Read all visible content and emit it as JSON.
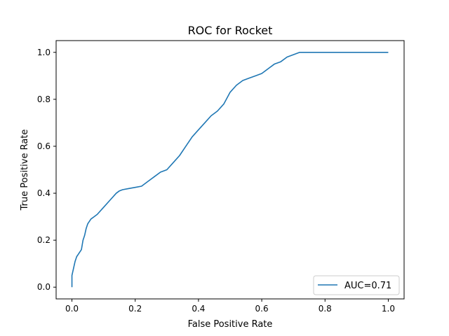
{
  "chart_data": {
    "type": "line",
    "title": "ROC for Rocket",
    "xlabel": "False Positive Rate",
    "ylabel": "True Positive Rate",
    "xlim": [
      -0.05,
      1.05
    ],
    "ylim": [
      -0.05,
      1.05
    ],
    "xticks": [
      "0.0",
      "0.2",
      "0.4",
      "0.6",
      "0.8",
      "1.0"
    ],
    "yticks": [
      "0.0",
      "0.2",
      "0.4",
      "0.6",
      "0.8",
      "1.0"
    ],
    "grid": false,
    "legend_position": "lower-right",
    "series": [
      {
        "name": "AUC=0.71",
        "color": "#1f77b4",
        "x": [
          0.0,
          0.0,
          0.005,
          0.01,
          0.015,
          0.02,
          0.03,
          0.035,
          0.04,
          0.045,
          0.05,
          0.06,
          0.07,
          0.08,
          0.1,
          0.12,
          0.14,
          0.15,
          0.16,
          0.18,
          0.2,
          0.22,
          0.24,
          0.26,
          0.28,
          0.3,
          0.32,
          0.34,
          0.36,
          0.38,
          0.4,
          0.42,
          0.44,
          0.46,
          0.48,
          0.5,
          0.52,
          0.54,
          0.56,
          0.58,
          0.6,
          0.62,
          0.64,
          0.66,
          0.68,
          0.7,
          0.72,
          0.75,
          1.0
        ],
        "y": [
          0.0,
          0.05,
          0.08,
          0.11,
          0.13,
          0.14,
          0.16,
          0.2,
          0.22,
          0.25,
          0.27,
          0.29,
          0.3,
          0.31,
          0.34,
          0.37,
          0.4,
          0.41,
          0.415,
          0.42,
          0.425,
          0.43,
          0.45,
          0.47,
          0.49,
          0.5,
          0.53,
          0.56,
          0.6,
          0.64,
          0.67,
          0.7,
          0.73,
          0.75,
          0.78,
          0.83,
          0.86,
          0.88,
          0.89,
          0.9,
          0.91,
          0.93,
          0.95,
          0.96,
          0.98,
          0.99,
          1.0,
          1.0,
          1.0
        ]
      }
    ]
  }
}
